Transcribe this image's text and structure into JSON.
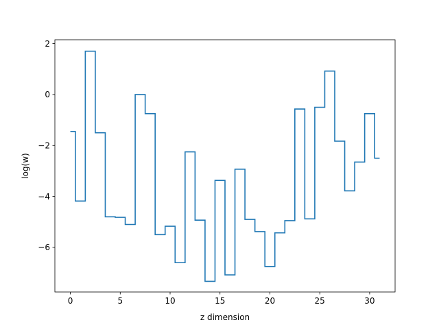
{
  "chart_data": {
    "type": "line",
    "drawstyle": "steps-mid",
    "title": "",
    "xlabel": "z dimension",
    "ylabel": "log(w)",
    "xlim": [
      -1.55,
      32.55
    ],
    "ylim": [
      -7.75,
      2.15
    ],
    "xticks": [
      0,
      5,
      10,
      15,
      20,
      25,
      30
    ],
    "yticks": [
      2,
      0,
      -2,
      -4,
      -6
    ],
    "xtick_labels": [
      "0",
      "5",
      "10",
      "15",
      "20",
      "25",
      "30"
    ],
    "ytick_labels": [
      "2",
      "0",
      "−2",
      "−4",
      "−6"
    ],
    "grid": false,
    "legend": "none",
    "series": [
      {
        "color": "#1f77b4",
        "x": [
          0,
          1,
          2,
          3,
          4,
          5,
          6,
          7,
          8,
          9,
          10,
          11,
          12,
          13,
          14,
          15,
          16,
          17,
          18,
          19,
          20,
          21,
          22,
          23,
          24,
          25,
          26,
          27,
          28,
          29,
          30,
          31
        ],
        "y": [
          -1.45,
          -4.18,
          1.7,
          -1.5,
          -4.8,
          -4.82,
          -5.1,
          0.0,
          -0.75,
          -5.5,
          -5.17,
          -6.6,
          -2.25,
          -4.93,
          -7.33,
          -3.37,
          -7.08,
          -2.93,
          -4.9,
          -5.38,
          -6.75,
          -5.43,
          -4.95,
          -0.57,
          -4.88,
          -0.5,
          0.92,
          -1.83,
          -3.78,
          -2.65,
          -0.75,
          -2.5
        ]
      }
    ]
  }
}
